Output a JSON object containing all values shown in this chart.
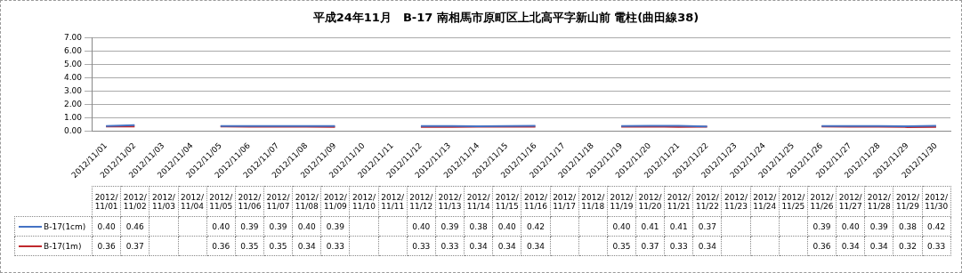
{
  "chart_data": {
    "type": "line",
    "title": "平成24年11月　B-17 南相馬市原町区上北高平字新山前 電柱(曲田線38)",
    "categories": [
      "2012/11/01",
      "2012/11/02",
      "2012/11/03",
      "2012/11/04",
      "2012/11/05",
      "2012/11/06",
      "2012/11/07",
      "2012/11/08",
      "2012/11/09",
      "2012/11/10",
      "2012/11/11",
      "2012/11/12",
      "2012/11/13",
      "2012/11/14",
      "2012/11/15",
      "2012/11/16",
      "2012/11/17",
      "2012/11/18",
      "2012/11/19",
      "2012/11/20",
      "2012/11/21",
      "2012/11/22",
      "2012/11/23",
      "2012/11/24",
      "2012/11/25",
      "2012/11/26",
      "2012/11/27",
      "2012/11/28",
      "2012/11/29",
      "2012/11/30"
    ],
    "series": [
      {
        "name": "B-17(1cm)",
        "color": "#4472c4",
        "values": [
          0.4,
          0.46,
          null,
          null,
          0.4,
          0.39,
          0.39,
          0.4,
          0.39,
          null,
          null,
          0.4,
          0.39,
          0.38,
          0.4,
          0.42,
          null,
          null,
          0.4,
          0.41,
          0.41,
          0.37,
          null,
          null,
          null,
          0.39,
          0.4,
          0.39,
          0.38,
          0.42
        ],
        "value_labels": [
          "0.40",
          "0.46",
          null,
          null,
          "0.40",
          "0.39",
          "0.39",
          "0.40",
          "0.39",
          null,
          null,
          "0.40",
          "0.39",
          "0.38",
          "0.40",
          "0.42",
          null,
          null,
          "0.40",
          "0.41",
          "0.41",
          "0.37",
          null,
          null,
          null,
          "0.39",
          "0.40",
          "0.39",
          "0.38",
          "0.42"
        ]
      },
      {
        "name": "B-17(1m)",
        "color": "#c0282d",
        "values": [
          0.36,
          0.37,
          null,
          null,
          0.36,
          0.35,
          0.35,
          0.34,
          0.33,
          null,
          null,
          0.33,
          0.33,
          0.34,
          0.34,
          0.34,
          null,
          null,
          0.35,
          0.37,
          0.33,
          0.34,
          null,
          null,
          null,
          0.36,
          0.34,
          0.34,
          0.32,
          0.33
        ],
        "value_labels": [
          "0.36",
          "0.37",
          null,
          null,
          "0.36",
          "0.35",
          "0.35",
          "0.34",
          "0.33",
          null,
          null,
          "0.33",
          "0.33",
          "0.34",
          "0.34",
          "0.34",
          null,
          null,
          "0.35",
          "0.37",
          "0.33",
          "0.34",
          null,
          null,
          null,
          "0.36",
          "0.34",
          "0.34",
          "0.32",
          "0.33"
        ]
      }
    ],
    "ylim": [
      0,
      7
    ],
    "yticks": [
      {
        "value": 0,
        "label": "0.00"
      },
      {
        "value": 1,
        "label": "1.00"
      },
      {
        "value": 2,
        "label": "2.00"
      },
      {
        "value": 3,
        "label": "3.00"
      },
      {
        "value": 4,
        "label": "4.00"
      },
      {
        "value": 5,
        "label": "5.00"
      },
      {
        "value": 6,
        "label": "6.00"
      },
      {
        "value": 7,
        "label": "7.00"
      }
    ],
    "grid": "y",
    "legend": "bottom",
    "marker": "none",
    "line_style": "solid"
  }
}
